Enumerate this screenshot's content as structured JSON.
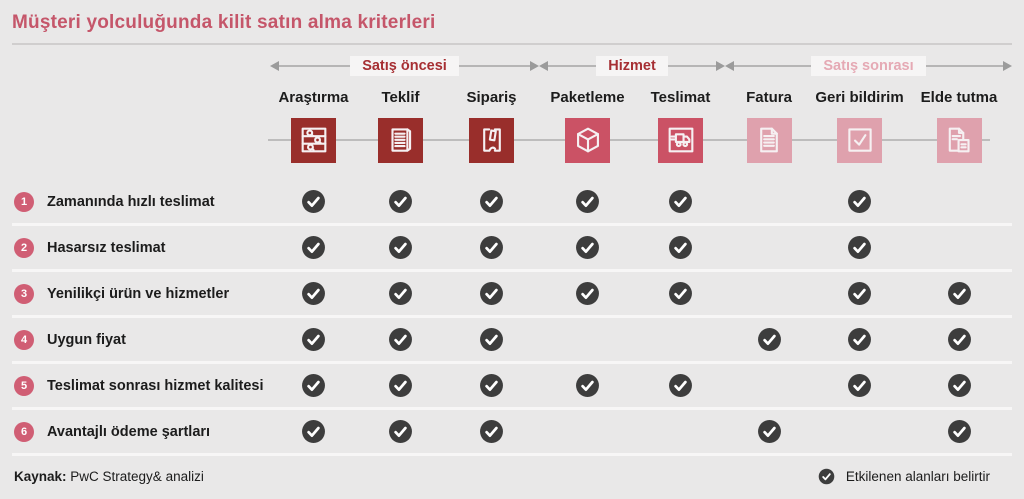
{
  "title": "Müşteri yolculuğunda kilit satın alma kriterleri",
  "phases": [
    {
      "label": "Satış öncesi",
      "color": "#a62f33"
    },
    {
      "label": "Hizmet",
      "color": "#a62f33"
    },
    {
      "label": "Satış sonrası",
      "color": "#e5a9b4"
    }
  ],
  "columns": [
    {
      "label": "Araştırma",
      "icon": "search-sliders-icon",
      "color": "#992e2b"
    },
    {
      "label": "Teklif",
      "icon": "offer-document-icon",
      "color": "#992e2b"
    },
    {
      "label": "Sipariş",
      "icon": "card-in-hand-icon",
      "color": "#992e2b"
    },
    {
      "label": "Paketleme",
      "icon": "package-cube-icon",
      "color": "#cb5265"
    },
    {
      "label": "Teslimat",
      "icon": "delivery-truck-icon",
      "color": "#cb5265"
    },
    {
      "label": "Fatura",
      "icon": "invoice-icon",
      "color": "#dfa1ad"
    },
    {
      "label": "Geri bildirim",
      "icon": "check-square-icon",
      "color": "#dfa1ad"
    },
    {
      "label": "Elde tutma",
      "icon": "documents-icon",
      "color": "#dfa1ad"
    }
  ],
  "rows": [
    {
      "num": "1",
      "label": "Zamanında hızlı teslimat",
      "checks": [
        1,
        1,
        1,
        1,
        1,
        0,
        1,
        0
      ]
    },
    {
      "num": "2",
      "label": "Hasarsız teslimat",
      "checks": [
        1,
        1,
        1,
        1,
        1,
        0,
        1,
        0
      ]
    },
    {
      "num": "3",
      "label": "Yenilikçi ürün ve hizmetler",
      "checks": [
        1,
        1,
        1,
        1,
        1,
        0,
        1,
        1
      ]
    },
    {
      "num": "4",
      "label": "Uygun fiyat",
      "checks": [
        1,
        1,
        1,
        0,
        0,
        1,
        1,
        1
      ]
    },
    {
      "num": "5",
      "label": "Teslimat sonrası hizmet kalitesi",
      "checks": [
        1,
        1,
        1,
        1,
        1,
        0,
        1,
        1
      ]
    },
    {
      "num": "6",
      "label": "Avantajlı ödeme şartları",
      "checks": [
        1,
        1,
        1,
        0,
        0,
        1,
        0,
        1
      ]
    }
  ],
  "footer": {
    "source_label": "Kaynak:",
    "source_text": " PwC Strategy& analizi",
    "legend_text": "Etkilenen alanları belirtir"
  },
  "colors": {
    "check_circle": "#3d3d3d",
    "row_number_bg": "#d05e74",
    "title": "#c5566a"
  }
}
